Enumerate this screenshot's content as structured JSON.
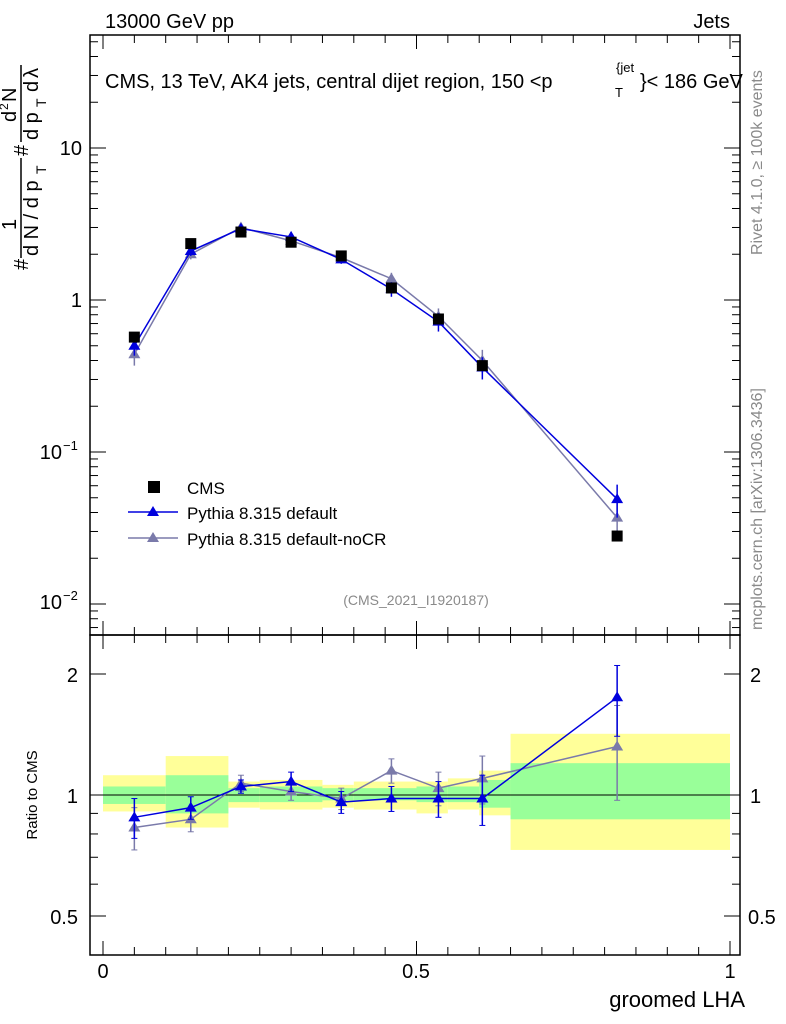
{
  "header": {
    "left": "13000 GeV pp",
    "right": "Jets",
    "title_pre": "CMS, 13 TeV, AK4 jets, central dijet region, 150 <p",
    "title_sup": "{jet",
    "title_sub": "T",
    "title_post": "}< 186 GeV",
    "analysis_tag": "(CMS_2021_I1920187)",
    "side_rivet": "Rivet 4.1.0, ≥ 100k events",
    "side_site": "mcplots.cern.ch [arXiv:1306.3436]"
  },
  "axes": {
    "ylabel_main": "1/N dN/dp_T d²N/(dp_T dλ)",
    "ylabel_ratio": "Ratio to CMS",
    "xlabel": "groomed LHA",
    "main_tick_labels": [
      "10",
      "1",
      "10",
      "10"
    ],
    "main_tick_exps": [
      "",
      "",
      "−1",
      "−2"
    ],
    "ratio_tick_labels": [
      "2",
      "1",
      "0.5"
    ],
    "x_tick_labels": [
      "0",
      "0.5",
      "1"
    ]
  },
  "colors": {
    "cms": "#000000",
    "default": "#0000dd",
    "nocr": "#7a7aaa",
    "band_inner": "#99ff99",
    "band_outer": "#ffff99",
    "band_inner_line": "#3fcf3f"
  },
  "chart_data": {
    "type": "scatter",
    "title": "CMS, 13 TeV, AK4 jets, central dijet region, 150 < p_T^{jet} < 186 GeV",
    "xlabel": "groomed LHA",
    "ylabel": "1/N dN/dp_T d²N/(dp_T dλ)",
    "xlim": [
      0,
      1
    ],
    "ylim": [
      0.007,
      65
    ],
    "yscale": "log",
    "legend_position": "lower-left",
    "bin_edges": [
      0,
      0.1,
      0.2,
      0.25,
      0.35,
      0.4,
      0.5,
      0.55,
      0.6,
      0.65,
      1.0
    ],
    "series": [
      {
        "name": "CMS",
        "style": "square",
        "x": [
          0.05,
          0.14,
          0.22,
          0.3,
          0.38,
          0.46,
          0.535,
          0.605,
          0.82
        ],
        "values": [
          0.57,
          2.35,
          2.8,
          2.4,
          1.95,
          1.2,
          0.75,
          0.37,
          0.028
        ]
      },
      {
        "name": "Pythia 8.315 default",
        "style": "triangle-line",
        "x": [
          0.05,
          0.14,
          0.22,
          0.3,
          0.38,
          0.46,
          0.535,
          0.605,
          0.82
        ],
        "values": [
          0.5,
          2.1,
          2.95,
          2.6,
          1.85,
          1.18,
          0.72,
          0.36,
          0.049
        ],
        "errors": [
          0.07,
          0.15,
          0.12,
          0.2,
          0.12,
          0.13,
          0.1,
          0.06,
          0.012
        ]
      },
      {
        "name": "Pythia 8.315 default-noCR",
        "style": "triangle-line",
        "x": [
          0.05,
          0.14,
          0.22,
          0.3,
          0.38,
          0.46,
          0.535,
          0.605,
          0.82
        ],
        "values": [
          0.44,
          2.0,
          3.0,
          2.45,
          1.9,
          1.38,
          0.78,
          0.4,
          0.037
        ],
        "errors": [
          0.07,
          0.15,
          0.12,
          0.2,
          0.12,
          0.13,
          0.1,
          0.07,
          0.01
        ]
      }
    ],
    "ratio": {
      "ylabel": "Ratio to CMS",
      "ylim": [
        0.4,
        2.35
      ],
      "yscale": "log",
      "default": {
        "values": [
          0.88,
          0.93,
          1.05,
          1.08,
          0.96,
          0.98,
          0.98,
          0.98,
          1.75
        ],
        "errors": [
          0.1,
          0.06,
          0.04,
          0.06,
          0.06,
          0.07,
          0.1,
          0.14,
          0.35
        ]
      },
      "nocr": {
        "values": [
          0.83,
          0.87,
          1.07,
          1.02,
          0.98,
          1.15,
          1.04,
          1.1,
          1.32
        ],
        "errors": [
          0.1,
          0.06,
          0.05,
          0.05,
          0.06,
          0.08,
          0.1,
          0.15,
          0.35
        ]
      },
      "band_inner": [
        [
          0.95,
          1.05
        ],
        [
          0.9,
          1.12
        ],
        [
          0.96,
          1.04
        ],
        [
          0.96,
          1.05
        ],
        [
          0.97,
          1.04
        ],
        [
          0.97,
          1.04
        ],
        [
          0.96,
          1.05
        ],
        [
          0.96,
          1.05
        ],
        [
          0.93,
          1.09
        ],
        [
          0.87,
          1.2
        ]
      ],
      "band_outer": [
        [
          0.91,
          1.12
        ],
        [
          0.83,
          1.25
        ],
        [
          0.93,
          1.08
        ],
        [
          0.92,
          1.09
        ],
        [
          0.93,
          1.06
        ],
        [
          0.92,
          1.08
        ],
        [
          0.9,
          1.08
        ],
        [
          0.92,
          1.1
        ],
        [
          0.89,
          1.15
        ],
        [
          0.73,
          1.42
        ]
      ]
    }
  }
}
